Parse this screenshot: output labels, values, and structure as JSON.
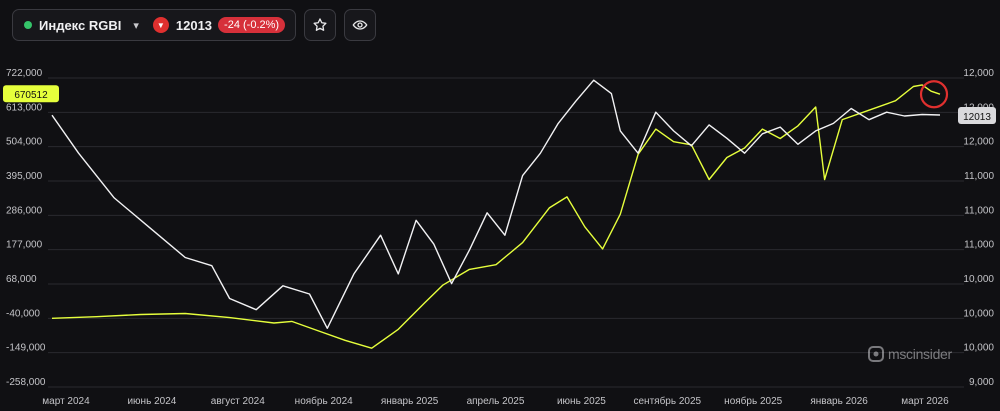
{
  "header": {
    "ticker_name": "Индекс RGBI",
    "price": "12013",
    "change": "-24 (-0.2%)",
    "status_color": "#35c46a",
    "change_color": "#d6303a",
    "icons": [
      "chevron-down-icon",
      "triangle-down-icon",
      "star-icon",
      "eye-icon"
    ]
  },
  "brand": {
    "text": "mscinsider"
  },
  "chart_data": {
    "type": "line",
    "grid": true,
    "x_ticks": [
      "март 2024",
      "июнь 2024",
      "август 2024",
      "ноябрь 2024",
      "январь 2025",
      "апрель 2025",
      "июнь 2025",
      "сентябрь 2025",
      "ноябрь 2025",
      "январь 2026",
      "март 2026"
    ],
    "left_axis": {
      "ticks": [
        "722,000",
        "613,000",
        "504,000",
        "395,000",
        "286,000",
        "177,000",
        "68,000",
        "-40,000",
        "-149,000",
        "-258,000"
      ],
      "range": [
        -258000,
        722000
      ],
      "current_value_label": "670512"
    },
    "right_axis": {
      "ticks": [
        "12,000",
        "12,000",
        "12,000",
        "11,000",
        "11,000",
        "11,000",
        "10,000",
        "10,000",
        "10,000",
        "9,000"
      ],
      "current_value_label": "12013"
    },
    "series": [
      {
        "color": "#e6ff3c",
        "axis": "left",
        "points": [
          [
            0,
            -40000
          ],
          [
            0.05,
            -35000
          ],
          [
            0.1,
            -28000
          ],
          [
            0.15,
            -25000
          ],
          [
            0.2,
            -38000
          ],
          [
            0.25,
            -55000
          ],
          [
            0.27,
            -50000
          ],
          [
            0.3,
            -80000
          ],
          [
            0.33,
            -110000
          ],
          [
            0.36,
            -135000
          ],
          [
            0.39,
            -75000
          ],
          [
            0.42,
            10000
          ],
          [
            0.44,
            65000
          ],
          [
            0.47,
            115000
          ],
          [
            0.5,
            130000
          ],
          [
            0.53,
            200000
          ],
          [
            0.56,
            310000
          ],
          [
            0.58,
            345000
          ],
          [
            0.6,
            250000
          ],
          [
            0.62,
            180000
          ],
          [
            0.64,
            290000
          ],
          [
            0.66,
            480000
          ],
          [
            0.68,
            560000
          ],
          [
            0.7,
            520000
          ],
          [
            0.72,
            510000
          ],
          [
            0.74,
            400000
          ],
          [
            0.76,
            470000
          ],
          [
            0.78,
            500000
          ],
          [
            0.8,
            560000
          ],
          [
            0.82,
            530000
          ],
          [
            0.84,
            570000
          ],
          [
            0.86,
            630000
          ],
          [
            0.87,
            400000
          ],
          [
            0.89,
            590000
          ],
          [
            0.92,
            620000
          ],
          [
            0.95,
            650000
          ],
          [
            0.97,
            695000
          ],
          [
            0.98,
            700000
          ],
          [
            0.99,
            680000
          ],
          [
            1,
            670512
          ]
        ]
      },
      {
        "color": "#f2f2f4",
        "axis": "right",
        "points": [
          [
            0,
            12010
          ],
          [
            0.03,
            11500
          ],
          [
            0.07,
            10900
          ],
          [
            0.11,
            10500
          ],
          [
            0.15,
            10100
          ],
          [
            0.18,
            9990
          ],
          [
            0.2,
            9550
          ],
          [
            0.23,
            9400
          ],
          [
            0.26,
            9720
          ],
          [
            0.29,
            9610
          ],
          [
            0.31,
            9150
          ],
          [
            0.34,
            9880
          ],
          [
            0.37,
            10400
          ],
          [
            0.39,
            9880
          ],
          [
            0.41,
            10600
          ],
          [
            0.43,
            10280
          ],
          [
            0.45,
            9750
          ],
          [
            0.47,
            10200
          ],
          [
            0.49,
            10700
          ],
          [
            0.51,
            10400
          ],
          [
            0.53,
            11200
          ],
          [
            0.55,
            11500
          ],
          [
            0.57,
            11900
          ],
          [
            0.59,
            12200
          ],
          [
            0.61,
            12480
          ],
          [
            0.63,
            12300
          ],
          [
            0.64,
            11800
          ],
          [
            0.66,
            11500
          ],
          [
            0.68,
            12050
          ],
          [
            0.7,
            11800
          ],
          [
            0.72,
            11600
          ],
          [
            0.74,
            11880
          ],
          [
            0.76,
            11700
          ],
          [
            0.78,
            11500
          ],
          [
            0.8,
            11760
          ],
          [
            0.82,
            11850
          ],
          [
            0.84,
            11620
          ],
          [
            0.86,
            11800
          ],
          [
            0.88,
            11900
          ],
          [
            0.9,
            12100
          ],
          [
            0.92,
            11950
          ],
          [
            0.94,
            12050
          ],
          [
            0.96,
            12000
          ],
          [
            0.98,
            12020
          ],
          [
            1,
            12013
          ]
        ]
      }
    ],
    "highlight": {
      "shape": "circle",
      "color": "#e0302f",
      "at": "end of yellow series"
    }
  }
}
